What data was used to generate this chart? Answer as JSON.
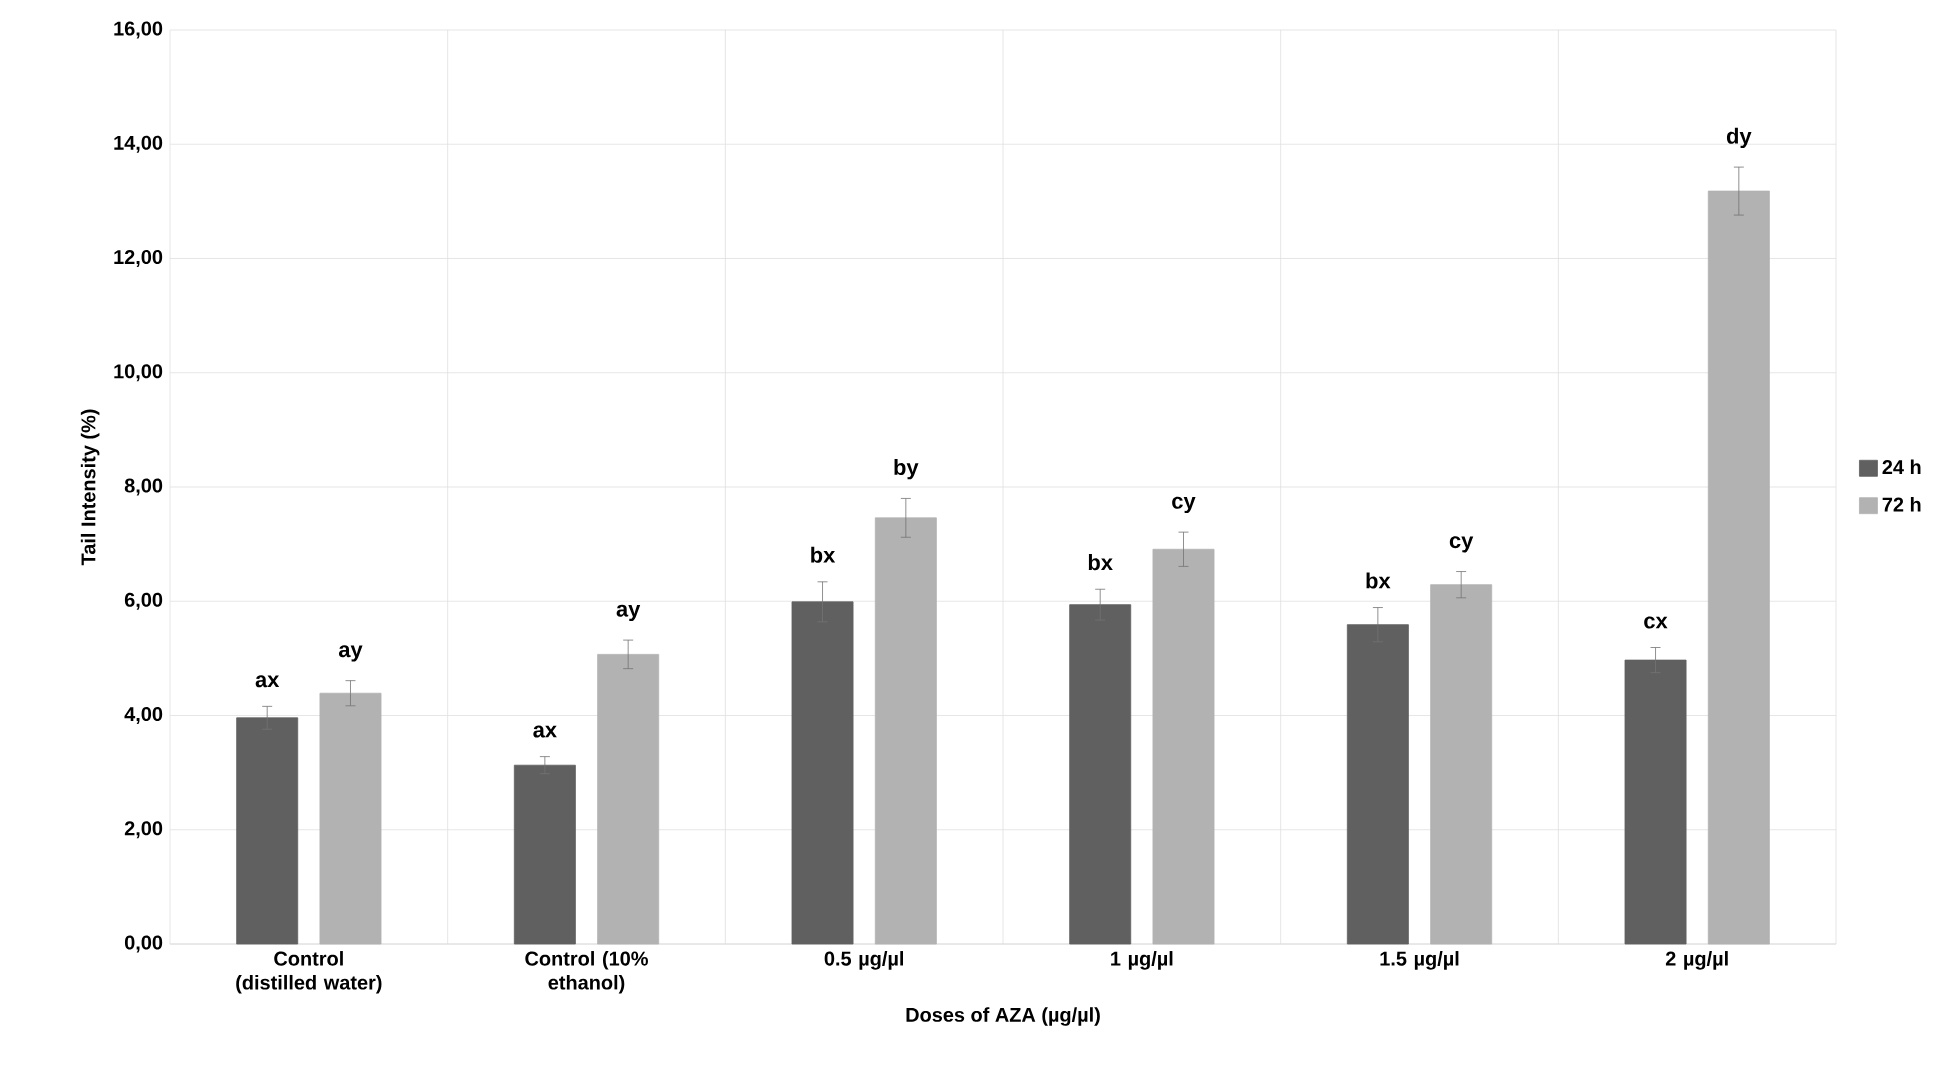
{
  "chart_data": {
    "type": "bar",
    "xlabel": "Doses of AZA (µg/µl)",
    "ylabel": "Tail Intensity (%)",
    "categories": [
      "Control (distilled water)",
      "Control (10% ethanol)",
      "0.5 µg/µl",
      "1 µg/µl",
      "1.5 µg/µl",
      "2 µg/µl"
    ],
    "series": [
      {
        "name": "24 h",
        "color": "#606060",
        "values": [
          3.96,
          3.13,
          5.99,
          5.94,
          5.59,
          4.97
        ],
        "errors": [
          0.2,
          0.15,
          0.35,
          0.27,
          0.3,
          0.22
        ],
        "value_labels": [
          "ax",
          "ax",
          "bx",
          "bx",
          "bx",
          "cx"
        ]
      },
      {
        "name": "72 h",
        "color": "#b2b2b2",
        "values": [
          4.39,
          5.07,
          7.46,
          6.91,
          6.29,
          13.18
        ],
        "errors": [
          0.22,
          0.25,
          0.34,
          0.3,
          0.23,
          0.42
        ],
        "value_labels": [
          "ay",
          "ay",
          "by",
          "cy",
          "cy",
          "dy"
        ]
      }
    ],
    "ylim": [
      0,
      16
    ],
    "yticks": [
      {
        "value": 0,
        "label": "0,00"
      },
      {
        "value": 2,
        "label": "2,00"
      },
      {
        "value": 4,
        "label": "4,00"
      },
      {
        "value": 6,
        "label": "6,00"
      },
      {
        "value": 8,
        "label": "8,00"
      },
      {
        "value": 10,
        "label": "10,00"
      },
      {
        "value": 12,
        "label": "12,00"
      },
      {
        "value": 14,
        "label": "14,00"
      },
      {
        "value": 16,
        "label": "16,00"
      }
    ],
    "grid": true,
    "legend": "right"
  }
}
